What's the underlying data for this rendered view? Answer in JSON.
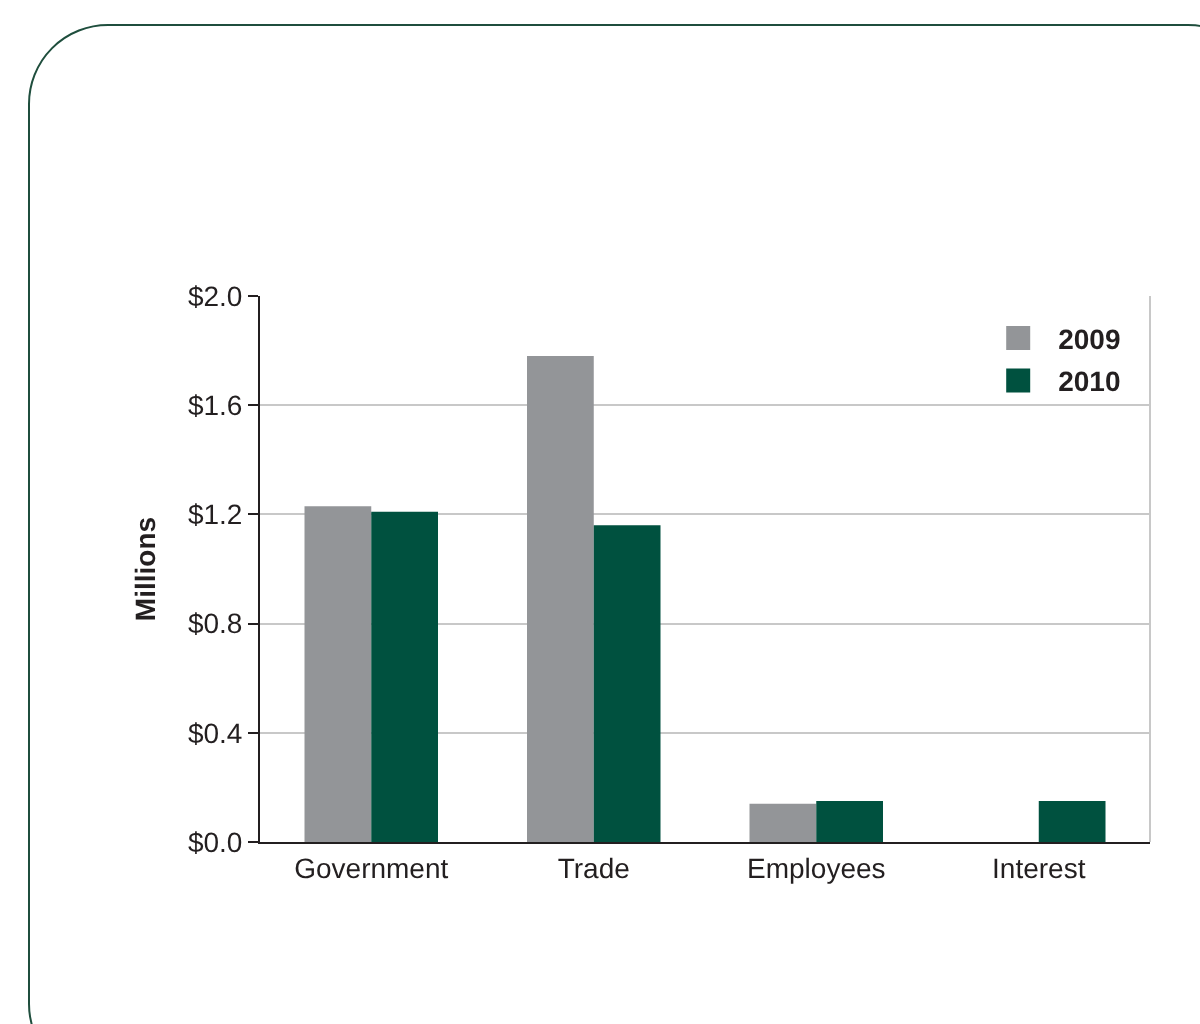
{
  "chart_data": {
    "type": "bar",
    "ylabel": "Millions",
    "categories": [
      "Government",
      "Trade",
      "Employees",
      "Interest"
    ],
    "series": [
      {
        "name": "2009",
        "color": "#939598",
        "values": [
          1.23,
          1.78,
          0.14,
          null
        ]
      },
      {
        "name": "2010",
        "color": "#00513f",
        "values": [
          1.21,
          1.16,
          0.15,
          0.15
        ]
      }
    ],
    "ylim": [
      0,
      2
    ],
    "yticks": [
      {
        "value": 0,
        "label": "$0.0"
      },
      {
        "value": 0.4,
        "label": "$0.4"
      },
      {
        "value": 0.8,
        "label": "$0.8"
      },
      {
        "value": 1.2,
        "label": "$1.2"
      },
      {
        "value": 1.6,
        "label": "$1.6"
      },
      {
        "value": 2,
        "label": "$2.0"
      }
    ],
    "grid": "y",
    "legend": "top right"
  }
}
